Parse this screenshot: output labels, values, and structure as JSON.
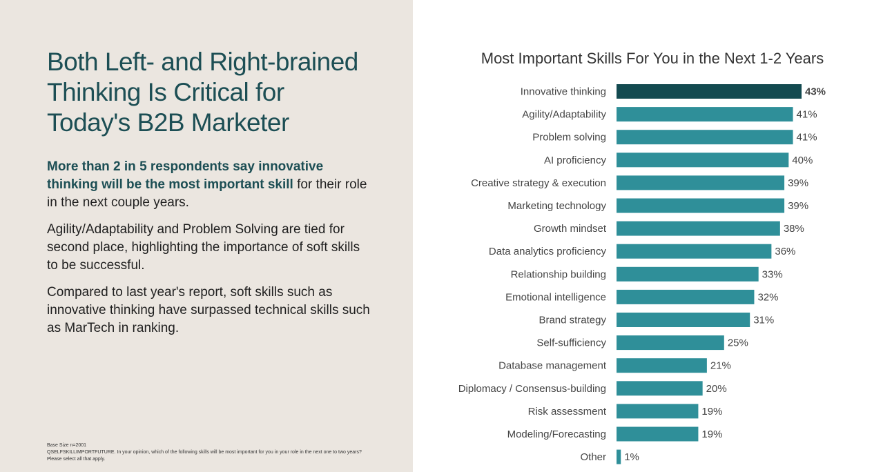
{
  "left": {
    "headline": [
      "Both Left- and Right-brained",
      "Thinking Is Critical for",
      "Today's B2B Marketer"
    ],
    "p1_highlight": "More than 2 in 5 respondents say innovative thinking will be the most important skill",
    "p1_rest": " for their role in the next couple years.",
    "p2": "Agility/Adaptability and Problem Solving are tied for second place, highlighting the importance of soft skills to be successful.",
    "p3": "Compared to last year's report, soft skills such as innovative thinking have surpassed technical skills such as MarTech in ranking.",
    "footnote": [
      "Base Size n=2001",
      "QSELFSKILLIMPORTFUTURE. In your opinion, which of the following skills will be most important for you in your role in the next one to two years?",
      "Please select all that apply."
    ]
  },
  "colors": {
    "highlight_bar": "#134a50",
    "bar": "#2f8f99",
    "left_bg": "#ebe6e0",
    "headline": "#1c4e54"
  },
  "chart_data": {
    "type": "bar",
    "orientation": "horizontal",
    "title": "Most Important Skills For You in the Next 1-2 Years",
    "categories": [
      "Innovative thinking",
      "Agility/Adaptability",
      "Problem solving",
      "AI proficiency",
      "Creative strategy & execution",
      "Marketing technology",
      "Growth mindset",
      "Data analytics proficiency",
      "Relationship building",
      "Emotional intelligence",
      "Brand strategy",
      "Self-sufficiency",
      "Database management",
      "Diplomacy / Consensus-building",
      "Risk assessment",
      "Modeling/Forecasting",
      "Other"
    ],
    "values": [
      43,
      41,
      41,
      40,
      39,
      39,
      38,
      36,
      33,
      32,
      31,
      25,
      21,
      20,
      19,
      19,
      1
    ],
    "value_labels": [
      "43%",
      "41%",
      "41%",
      "40%",
      "39%",
      "39%",
      "38%",
      "36%",
      "33%",
      "32%",
      "31%",
      "25%",
      "21%",
      "20%",
      "19%",
      "19%",
      "1%"
    ],
    "highlighted_index": 0,
    "xlabel": "",
    "ylabel": "",
    "xlim": [
      0,
      43
    ],
    "grid": false,
    "legend": "none"
  }
}
